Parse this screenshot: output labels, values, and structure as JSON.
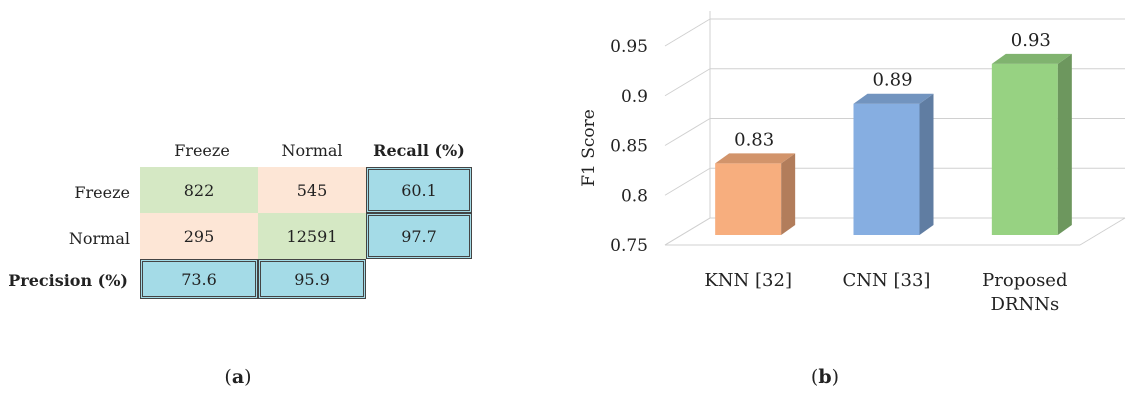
{
  "panel_a": {
    "caption": "a",
    "col_headers": [
      "Freeze",
      "Normal",
      "Recall (%)"
    ],
    "rows": [
      {
        "label": "Freeze",
        "values": [
          "822",
          "545"
        ],
        "recall": "60.1"
      },
      {
        "label": "Normal",
        "values": [
          "295",
          "12591"
        ],
        "recall": "97.7"
      }
    ],
    "precision_label": "Precision (%)",
    "precision": [
      "73.6",
      "95.9"
    ],
    "colors": {
      "correct": "#d5e8c4",
      "incorrect": "#fde6d6",
      "metric": "#a4dbe7"
    }
  },
  "panel_b": {
    "caption": "b"
  },
  "chart_data": {
    "type": "bar",
    "categories": [
      "KNN [32]",
      "CNN [33]",
      "Proposed DRNNs"
    ],
    "values": [
      0.83,
      0.89,
      0.93
    ],
    "data_labels": [
      "0.83",
      "0.89",
      "0.93"
    ],
    "ylabel": "F1 Score",
    "ylim": [
      0.75,
      0.95
    ],
    "yticks": [
      "0.75",
      "0.8",
      "0.85",
      "0.9",
      "0.95"
    ],
    "grid": true,
    "colors": [
      "#f7ae7e",
      "#86aee1",
      "#97d282"
    ]
  }
}
